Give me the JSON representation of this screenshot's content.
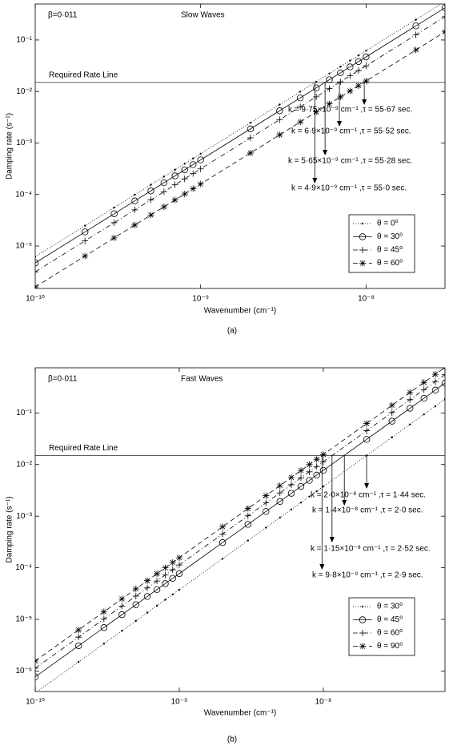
{
  "chart_data": [
    {
      "type": "line",
      "title": "Slow Waves",
      "beta_label": "β=0·011",
      "caption": "(a)",
      "x_label": "Wavenumber (cm⁻¹)",
      "y_label": "Damping rate  (s⁻¹)",
      "log_x": true,
      "log_y": true,
      "legend": "lower right",
      "xlim": [
        1e-10,
        3e-08
      ],
      "ylim": [
        1.5e-06,
        0.5
      ],
      "xticks": [
        {
          "value": 1e-10,
          "label": "10⁻¹⁰"
        },
        {
          "value": 1e-09,
          "label": "10⁻⁹"
        },
        {
          "value": 1e-08,
          "label": "10⁻⁸"
        }
      ],
      "yticks": [
        {
          "value": 1e-05,
          "label": "10⁻⁵"
        },
        {
          "value": 0.0001,
          "label": "10⁻⁴"
        },
        {
          "value": 0.001,
          "label": "10⁻³"
        },
        {
          "value": 0.01,
          "label": "10⁻²"
        },
        {
          "value": 0.1,
          "label": "10⁻¹"
        }
      ],
      "hline": {
        "value": 0.015,
        "label": "Required Rate Line"
      },
      "annotations": [
        {
          "text": "k = 9·75×10⁻⁹ cm⁻¹ ,τ = 55·67 sec.",
          "x": 9.75e-09
        },
        {
          "text": "k = 6·9×10⁻⁹ cm⁻¹ ,τ = 55·52 sec.",
          "x": 6.9e-09
        },
        {
          "text": "k = 5·65×10⁻⁹ cm⁻¹ ,τ = 55·28 sec.",
          "x": 5.65e-09
        },
        {
          "text": "k = 4·9×10⁻⁹ cm⁻¹ ,τ = 55·0 sec.",
          "x": 4.9e-09
        }
      ],
      "x": [
        1e-10,
        2e-10,
        3e-10,
        4e-10,
        5e-10,
        6e-10,
        7e-10,
        8e-10,
        9e-10,
        1e-09,
        2e-09,
        3e-09,
        4e-09,
        5e-09,
        6e-09,
        7e-09,
        8e-09,
        9e-09,
        1e-08,
        2e-08,
        3e-08
      ],
      "series": [
        {
          "name": "θ = 0⁰",
          "color": "#000000",
          "line_style": "dotted",
          "marker": "point",
          "values": [
            6.2e-06,
            2.48e-05,
            5.58e-05,
            9.92e-05,
            0.000155,
            0.0002232,
            0.0003038,
            0.0003968,
            0.0005022,
            0.00062,
            0.00248,
            0.00558,
            0.00992,
            0.0155,
            0.02232,
            0.03038,
            0.03968,
            0.05022,
            0.062,
            0.248,
            0.558
          ]
        },
        {
          "name": "θ = 30⁰",
          "color": "#000000",
          "line_style": "solid",
          "marker": "circle",
          "values": [
            4.7e-06,
            1.88e-05,
            4.23e-05,
            7.52e-05,
            0.0001175,
            0.0001692,
            0.0002303,
            0.0003008,
            0.0003807,
            0.00047,
            0.00188,
            0.00423,
            0.00752,
            0.01175,
            0.01692,
            0.02303,
            0.03008,
            0.03807,
            0.047,
            0.188,
            0.423
          ]
        },
        {
          "name": "θ = 45⁰",
          "color": "#000000",
          "line_style": "dashdot",
          "marker": "plus",
          "values": [
            3.15e-06,
            1.26e-05,
            2.835e-05,
            5.04e-05,
            7.875e-05,
            0.0001134,
            0.00015435,
            0.0002016,
            0.00025515,
            0.000315,
            0.00126,
            0.002835,
            0.00504,
            0.007875,
            0.01134,
            0.015435,
            0.02016,
            0.025515,
            0.0315,
            0.126,
            0.2835
          ]
        },
        {
          "name": "θ = 60⁰",
          "color": "#000000",
          "line_style": "dashed",
          "marker": "star",
          "values": [
            1.6e-06,
            6.4e-06,
            1.44e-05,
            2.56e-05,
            4e-05,
            5.76e-05,
            7.84e-05,
            0.0001024,
            0.0001296,
            0.00016,
            0.00064,
            0.00144,
            0.00256,
            0.004,
            0.00576,
            0.00784,
            0.01024,
            0.01296,
            0.016,
            0.064,
            0.144
          ]
        }
      ]
    },
    {
      "type": "line",
      "title": "Fast Waves",
      "beta_label": "β=0·011",
      "caption": "(b)",
      "x_label": "Wavenumber (cm⁻¹)",
      "y_label": "Damping rate  (s⁻¹)",
      "log_x": true,
      "log_y": true,
      "legend": "lower right",
      "xlim": [
        1e-10,
        7e-08
      ],
      "ylim": [
        4e-07,
        0.75
      ],
      "xticks": [
        {
          "value": 1e-10,
          "label": "10⁻¹⁰"
        },
        {
          "value": 1e-09,
          "label": "10⁻⁹"
        },
        {
          "value": 1e-08,
          "label": "10⁻⁸"
        }
      ],
      "yticks": [
        {
          "value": 1e-06,
          "label": "10⁻⁶"
        },
        {
          "value": 1e-05,
          "label": "10⁻⁵"
        },
        {
          "value": 0.0001,
          "label": "10⁻⁴"
        },
        {
          "value": 0.001,
          "label": "10⁻³"
        },
        {
          "value": 0.01,
          "label": "10⁻²"
        },
        {
          "value": 0.1,
          "label": "10⁻¹"
        }
      ],
      "hline": {
        "value": 0.015,
        "label": "Required Rate Line"
      },
      "annotations": [
        {
          "text": "k = 2·0×10⁻⁸ cm⁻¹ ,τ = 1·44 sec.",
          "x": 2e-08
        },
        {
          "text": "k = 1·4×10⁻⁸ cm⁻¹ ,τ = 2·0 sec.",
          "x": 1.4e-08
        },
        {
          "text": "k = 1·15×10⁻⁸ cm⁻¹ ,τ = 2·52 sec.",
          "x": 1.15e-08
        },
        {
          "text": "k = 9·8×10⁻⁹ cm⁻¹ ,τ = 2·9 sec.",
          "x": 9.8e-09
        }
      ],
      "x": [
        1e-10,
        2e-10,
        3e-10,
        4e-10,
        5e-10,
        6e-10,
        7e-10,
        8e-10,
        9e-10,
        1e-09,
        2e-09,
        3e-09,
        4e-09,
        5e-09,
        6e-09,
        7e-09,
        8e-09,
        9e-09,
        1e-08,
        2e-08,
        3e-08,
        4e-08,
        5e-08,
        6e-08,
        7e-08
      ],
      "series": [
        {
          "name": "θ = 30⁰",
          "color": "#000000",
          "line_style": "dotted",
          "marker": "point",
          "values": [
            3.75e-07,
            1.5e-06,
            3.375e-06,
            6e-06,
            9.375e-06,
            1.35e-05,
            1.8375e-05,
            2.4e-05,
            3.0375e-05,
            3.75e-05,
            0.00015,
            0.0003375,
            0.0006,
            0.0009375,
            0.00135,
            0.0018375,
            0.0024,
            0.0030375,
            0.00375,
            0.015,
            0.03375,
            0.06,
            0.09375,
            0.135,
            0.18375
          ]
        },
        {
          "name": "θ = 45⁰",
          "color": "#000000",
          "line_style": "solid",
          "marker": "circle",
          "values": [
            7.7e-07,
            3.08e-06,
            6.93e-06,
            1.232e-05,
            1.925e-05,
            2.772e-05,
            3.773e-05,
            4.928e-05,
            6.237e-05,
            7.7e-05,
            0.000308,
            0.000693,
            0.001232,
            0.001925,
            0.002772,
            0.003773,
            0.004928,
            0.006237,
            0.0077,
            0.0308,
            0.0693,
            0.1232,
            0.1925,
            0.2772,
            0.3773
          ]
        },
        {
          "name": "θ = 60⁰",
          "color": "#000000",
          "line_style": "dashdot",
          "marker": "plus",
          "values": [
            1.13e-06,
            4.52e-06,
            1.017e-05,
            1.808e-05,
            2.825e-05,
            4.068e-05,
            5.537e-05,
            7.232e-05,
            9.153e-05,
            0.000113,
            0.000452,
            0.001017,
            0.001808,
            0.002825,
            0.004068,
            0.005537,
            0.007232,
            0.009153,
            0.0113,
            0.0452,
            0.1017,
            0.1808,
            0.2825,
            0.4068,
            0.5537
          ]
        },
        {
          "name": "θ = 90⁰",
          "color": "#000000",
          "line_style": "dashed",
          "marker": "star",
          "values": [
            1.56e-06,
            6.24e-06,
            1.404e-05,
            2.496e-05,
            3.9e-05,
            5.616e-05,
            7.644e-05,
            9.984e-05,
            0.00012636,
            0.000156,
            0.000624,
            0.001404,
            0.002496,
            0.0039,
            0.005616,
            0.007644,
            0.009984,
            0.012636,
            0.0156,
            0.0624,
            0.1404,
            0.2496,
            0.39,
            0.5616,
            0.7644
          ]
        }
      ]
    }
  ]
}
